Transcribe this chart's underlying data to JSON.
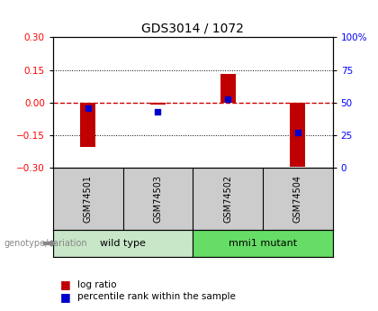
{
  "title": "GDS3014 / 1072",
  "samples": [
    "GSM74501",
    "GSM74503",
    "GSM74502",
    "GSM74504"
  ],
  "log_ratios": [
    -0.205,
    -0.01,
    0.13,
    -0.295
  ],
  "percentile_ranks": [
    46,
    43,
    53,
    27
  ],
  "groups": [
    {
      "name": "wild type",
      "samples": [
        0,
        1
      ],
      "color": "#c8e6c8"
    },
    {
      "name": "mmi1 mutant",
      "samples": [
        2,
        3
      ],
      "color": "#66dd66"
    }
  ],
  "left_ylim": [
    -0.3,
    0.3
  ],
  "right_ylim": [
    0,
    100
  ],
  "left_yticks": [
    -0.3,
    -0.15,
    0,
    0.15,
    0.3
  ],
  "right_yticks": [
    0,
    25,
    50,
    75,
    100
  ],
  "bar_color": "#c00000",
  "dot_color": "#0000cc",
  "zero_line_color": "#cc0000",
  "grid_color": "black",
  "bg_color": "white",
  "sample_bg_color": "#cccccc",
  "label_log_ratio": "log ratio",
  "label_percentile": "percentile rank within the sample",
  "genotype_label": "genotype/variation",
  "bar_width": 0.22
}
